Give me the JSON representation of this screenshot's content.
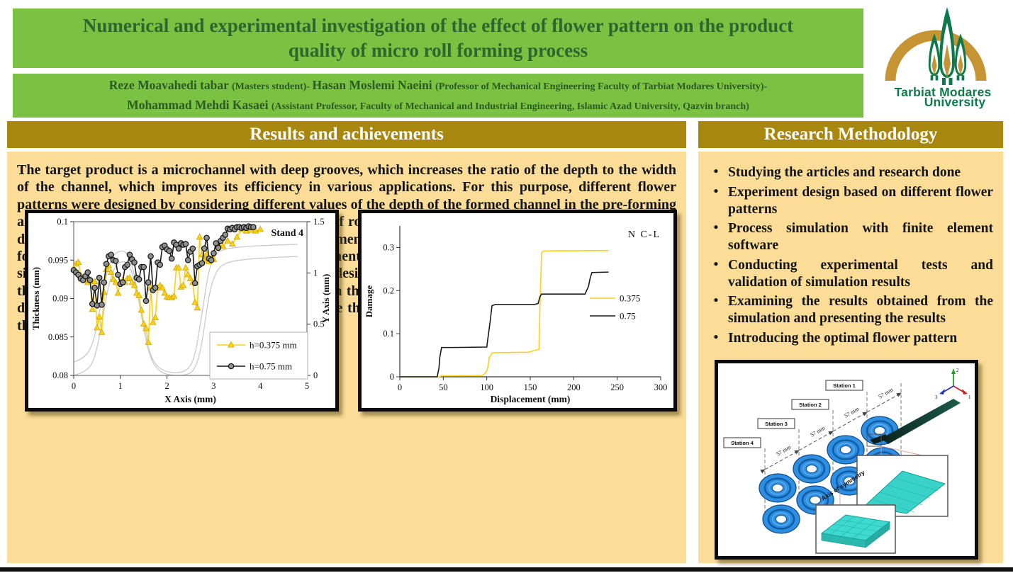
{
  "poster": {
    "title": "Numerical and experimental investigation of the effect of flower pattern on the product quality of micro roll forming process",
    "authors": [
      {
        "name": "Reze Moavahedi tabar ",
        "affiliation": "(Masters student)- "
      },
      {
        "name": "Hasan Moslemi Naeini ",
        "affiliation": "(Professor of Mechanical Engineering Faculty of Tarbiat Modares University)-"
      },
      {
        "name": "Mohammad Mehdi Kasaei ",
        "affiliation": "(Assistant Professor, Faculty of Mechanical and Industrial Engineering, Islamic Azad University, Qazvin branch)"
      }
    ]
  },
  "logo": {
    "line1": "Tarbiat Modares",
    "line2": "University"
  },
  "left_section": {
    "header": "Results and achievements",
    "body": "The target product is a microchannel with deep grooves, which increases the ratio of the depth to the width of the channel, which improves its efficiency in various applications. For this purpose, different flower patterns were designed by considering different values of the depth of the formed channel in the pre-forming and final forming stages. Finite element simulation of roller microforming process was done considering the designed flower patterns. Validation of the finite element model was done by comparing the thinness of the formed sheet section in the experimental experiments of roller microforming with the finite element simulation results. In the following, the methods of designing the flower pattern were evaluated in terms of the thinning of the section and the damage caused in the microchannel section. The results showed that the design of the flower pattern has a great effect on the thinning of the microchannel section after forming in the roller microforming process."
  },
  "right_section": {
    "header": "Research Methodology",
    "bullets": [
      "Studying the articles and research done",
      "Experiment design based on different flower patterns",
      "Process simulation with finite element software",
      "Conducting experimental tests and validation of simulation results",
      "Examining the results obtained from the simulation and presenting the results",
      "Introducing the optimal flower pattern"
    ]
  },
  "diagram": {
    "stations": [
      "Station 1",
      "Station 2",
      "Station 3",
      "Station 4"
    ],
    "dim_labels": [
      "57 mm",
      "57 mm",
      "57 mm",
      "57 mm"
    ],
    "axis_labels": {
      "up": "2",
      "right": "1",
      "left": "3"
    },
    "symmetry_label": "Axis of symmetry"
  },
  "colors": {
    "green_bar": "#7CC242",
    "title_text": "#2E672E",
    "gold_header": "#A8870E",
    "content_bg": "#FBDD98",
    "series_yellow": "#FCD018",
    "series_black": "#1A1A1A",
    "profile_gray": "#CACACA",
    "roller_blue": "#2E8FE2",
    "mesh_teal": "#38D2C9",
    "logo_gold": "#C79433",
    "logo_green": "#0E7A4C"
  },
  "chart_data": [
    {
      "id": "thickness-chart",
      "type": "line",
      "title_annotation": "Stand 4",
      "xlabel": "X Axis (mm)",
      "ylabel_left": "Thickness (mm)",
      "ylabel_right": "Y Axis (mm)",
      "xlim": [
        0,
        5
      ],
      "x_ticks": [
        {
          "v": 0,
          "l": "0"
        },
        {
          "v": 1,
          "l": "1"
        },
        {
          "v": 2,
          "l": "2"
        },
        {
          "v": 3,
          "l": "3"
        },
        {
          "v": 4,
          "l": "4"
        },
        {
          "v": 5,
          "l": "5"
        }
      ],
      "ylim_left": [
        0.08,
        0.1
      ],
      "y_ticks_left": [
        {
          "v": 0.08,
          "l": "0.08"
        },
        {
          "v": 0.085,
          "l": "0.085"
        },
        {
          "v": 0.09,
          "l": "0.09"
        },
        {
          "v": 0.095,
          "l": "0.095"
        },
        {
          "v": 0.1,
          "l": "0.1"
        }
      ],
      "ylim_right": [
        0,
        1.5
      ],
      "y_ticks_right": [
        {
          "v": 0,
          "l": "0"
        },
        {
          "v": 0.5,
          "l": "0.5"
        },
        {
          "v": 1,
          "l": "1"
        },
        {
          "v": 1.5,
          "l": "1.5"
        }
      ],
      "series": [
        {
          "name": "h=0.375 mm",
          "color": "#FCD018",
          "marker": "triangle",
          "axis": "left",
          "x": [
            0,
            0.05,
            0.1,
            0.15,
            0.2,
            0.25,
            0.3,
            0.35,
            0.4,
            0.45,
            0.5,
            0.55,
            0.6,
            0.65,
            0.7,
            0.75,
            0.8,
            0.85,
            0.9,
            0.95,
            1,
            1.05,
            1.1,
            1.15,
            1.2,
            1.25,
            1.3,
            1.35,
            1.4,
            1.45,
            1.5,
            1.55,
            1.6,
            1.65,
            1.7,
            1.75,
            1.8,
            1.85,
            1.9,
            1.95,
            2,
            2.05,
            2.1,
            2.15,
            2.2,
            2.25,
            2.3,
            2.35,
            2.4,
            2.45,
            2.5,
            2.55,
            2.6,
            2.65,
            2.7,
            2.75,
            2.8,
            2.85,
            2.9,
            2.95,
            3,
            3.1,
            3.2,
            3.3,
            3.4,
            3.5,
            3.6,
            3.7,
            3.8,
            3.9,
            4
          ],
          "y": [
            0.0938,
            0.0945,
            0.0947,
            0.093,
            0.0927,
            0.0924,
            0.0921,
            0.0924,
            0.0886,
            0.0922,
            0.0862,
            0.0876,
            0.0856,
            0.0908,
            0.0938,
            0.0943,
            0.0934,
            0.0925,
            0.0921,
            0.0907,
            0.0921,
            0.0924,
            0.0921,
            0.0926,
            0.0927,
            0.0921,
            0.0917,
            0.0907,
            0.0904,
            0.0885,
            0.0867,
            0.0861,
            0.0843,
            0.0914,
            0.0869,
            0.0875,
            0.0914,
            0.0917,
            0.0914,
            0.0907,
            0.0902,
            0.0901,
            0.0901,
            0.0903,
            0.094,
            0.094,
            0.0915,
            0.0917,
            0.094,
            0.0931,
            0.0926,
            0.0921,
            0.0895,
            0.0888,
            0.098,
            0.0957,
            0.095,
            0.0958,
            0.0948,
            0.0952,
            0.0951,
            0.097,
            0.0968,
            0.0975,
            0.0971,
            0.098,
            0.099,
            0.0988,
            0.0989,
            0.0988,
            0.099
          ]
        },
        {
          "name": "h=0.75 mm",
          "color": "#1A1A1A",
          "marker": "circle",
          "marker_fill": "#8F8F8F",
          "axis": "left",
          "x": [
            0,
            0.05,
            0.1,
            0.15,
            0.2,
            0.25,
            0.3,
            0.35,
            0.4,
            0.45,
            0.5,
            0.55,
            0.6,
            0.65,
            0.7,
            0.75,
            0.8,
            0.85,
            0.9,
            0.95,
            1,
            1.05,
            1.1,
            1.15,
            1.2,
            1.25,
            1.3,
            1.35,
            1.4,
            1.45,
            1.5,
            1.55,
            1.6,
            1.65,
            1.7,
            1.75,
            1.8,
            1.85,
            1.9,
            1.95,
            2,
            2.05,
            2.1,
            2.15,
            2.2,
            2.25,
            2.3,
            2.35,
            2.4,
            2.45,
            2.5,
            2.55,
            2.6,
            2.65,
            2.7,
            2.75,
            2.8,
            2.85,
            2.9,
            2.95,
            3,
            3.05,
            3.1,
            3.15,
            3.2,
            3.25,
            3.3,
            3.35,
            3.4,
            3.45,
            3.5,
            3.55,
            3.6,
            3.65,
            3.7,
            3.75,
            3.8,
            3.85
          ],
          "y": [
            0.0937,
            0.0934,
            0.0931,
            0.0926,
            0.0924,
            0.0929,
            0.0934,
            0.0924,
            0.0893,
            0.0914,
            0.0891,
            0.0927,
            0.0892,
            0.0921,
            0.0945,
            0.0955,
            0.0957,
            0.095,
            0.0949,
            0.0931,
            0.0919,
            0.0921,
            0.0941,
            0.0944,
            0.0957,
            0.0951,
            0.0947,
            0.0927,
            0.0925,
            0.0941,
            0.0941,
            0.0897,
            0.0921,
            0.0955,
            0.0911,
            0.0914,
            0.0947,
            0.0944,
            0.0967,
            0.0969,
            0.0964,
            0.0962,
            0.0952,
            0.0973,
            0.097,
            0.0965,
            0.0972,
            0.097,
            0.0971,
            0.095,
            0.0961,
            0.0965,
            0.092,
            0.0942,
            0.0944,
            0.0946,
            0.0965,
            0.0979,
            0.0952,
            0.095,
            0.0959,
            0.0972,
            0.0966,
            0.0975,
            0.0979,
            0.0983,
            0.0991,
            0.099,
            0.0992,
            0.099,
            0.0993,
            0.0993,
            0.0992,
            0.0993,
            0.0992,
            0.0994,
            0.0993,
            0.0993
          ]
        }
      ],
      "profile_curves": {
        "color": "#CACACA",
        "axis": "right",
        "curves": [
          [
            [
              0,
              0.13
            ],
            [
              0.2,
              0.16
            ],
            [
              0.4,
              0.28
            ],
            [
              0.55,
              0.6
            ],
            [
              0.7,
              1.0
            ],
            [
              0.85,
              1.18
            ],
            [
              1.0,
              1.22
            ],
            [
              1.15,
              1.2
            ],
            [
              1.3,
              1.0
            ],
            [
              1.45,
              0.6
            ],
            [
              1.6,
              0.25
            ],
            [
              1.75,
              0.1
            ],
            [
              1.95,
              0.04
            ],
            [
              2.2,
              0.02
            ],
            [
              2.45,
              0.05
            ],
            [
              2.6,
              0.18
            ],
            [
              2.75,
              0.6
            ],
            [
              2.9,
              1.05
            ],
            [
              3.05,
              1.2
            ],
            [
              3.3,
              1.24
            ],
            [
              3.7,
              1.26
            ],
            [
              4.2,
              1.27
            ],
            [
              4.8,
              1.28
            ]
          ],
          [
            [
              0,
              0.0
            ],
            [
              0.25,
              0.03
            ],
            [
              0.45,
              0.15
            ],
            [
              0.6,
              0.5
            ],
            [
              0.75,
              0.9
            ],
            [
              0.9,
              1.08
            ],
            [
              1.05,
              1.12
            ],
            [
              1.2,
              1.08
            ],
            [
              1.35,
              0.85
            ],
            [
              1.5,
              0.45
            ],
            [
              1.65,
              0.15
            ],
            [
              1.85,
              0.03
            ],
            [
              2.1,
              0.0
            ],
            [
              2.4,
              0.0
            ],
            [
              2.6,
              0.05
            ],
            [
              2.75,
              0.3
            ],
            [
              2.9,
              0.8
            ],
            [
              3.05,
              1.02
            ],
            [
              3.25,
              1.1
            ],
            [
              3.6,
              1.13
            ],
            [
              4.2,
              1.15
            ],
            [
              4.8,
              1.16
            ]
          ]
        ]
      }
    },
    {
      "id": "damage-chart",
      "type": "line",
      "title_annotation": "N C-L",
      "xlabel": "Displacement (mm)",
      "ylabel_left": "Damage",
      "xlim": [
        0,
        300
      ],
      "x_ticks": [
        {
          "v": 0,
          "l": "0"
        },
        {
          "v": 50,
          "l": "50"
        },
        {
          "v": 100,
          "l": "100"
        },
        {
          "v": 150,
          "l": "150"
        },
        {
          "v": 200,
          "l": "200"
        },
        {
          "v": 250,
          "l": "250"
        },
        {
          "v": 300,
          "l": "300"
        }
      ],
      "ylim_left": [
        0,
        0.35
      ],
      "y_ticks_left": [
        {
          "v": 0,
          "l": "0"
        },
        {
          "v": 0.1,
          "l": "0.1"
        },
        {
          "v": 0.2,
          "l": "0.2"
        },
        {
          "v": 0.3,
          "l": "0.3"
        }
      ],
      "series": [
        {
          "name": "0.375",
          "color": "#FCD018",
          "marker": "none",
          "axis": "left",
          "x": [
            0,
            45,
            48,
            95,
            99,
            101,
            103,
            106,
            110,
            148,
            153,
            157,
            160,
            161,
            163,
            166,
            240
          ],
          "y": [
            0,
            0,
            0.002,
            0.003,
            0.01,
            0.02,
            0.045,
            0.055,
            0.056,
            0.057,
            0.06,
            0.062,
            0.064,
            0.15,
            0.288,
            0.292,
            0.293
          ]
        },
        {
          "name": "0.75",
          "color": "#1A1A1A",
          "marker": "none",
          "axis": "left",
          "x": [
            0,
            43,
            45,
            46,
            48,
            60,
            100,
            102,
            104,
            106,
            110,
            155,
            159,
            161,
            163,
            213,
            217,
            219,
            221,
            240
          ],
          "y": [
            0,
            0,
            0.02,
            0.045,
            0.068,
            0.068,
            0.069,
            0.1,
            0.13,
            0.165,
            0.168,
            0.168,
            0.17,
            0.185,
            0.192,
            0.192,
            0.21,
            0.23,
            0.242,
            0.243
          ]
        }
      ]
    }
  ]
}
